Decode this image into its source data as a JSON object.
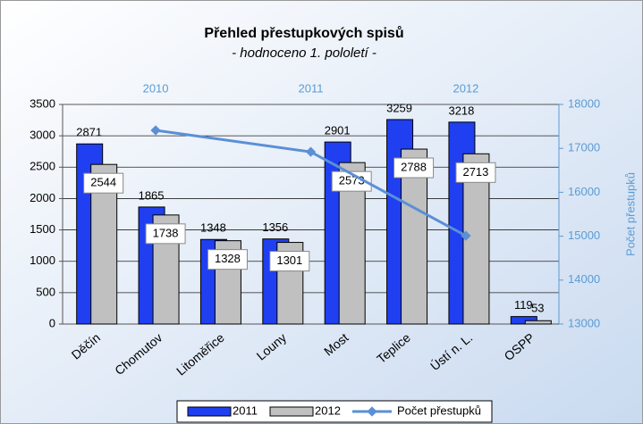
{
  "chart_data": {
    "type": "bar",
    "title": "Přehled přestupkových spisů",
    "subtitle": "- hodnoceno 1. pololetí -",
    "categories": [
      "Děčín",
      "Chomutov",
      "Litoměřice",
      "Louny",
      "Most",
      "Teplice",
      "Ústí n. L.",
      "OSPP"
    ],
    "series": [
      {
        "name": "2011",
        "color": "#1f3ff0",
        "values": [
          2871,
          1865,
          1348,
          1356,
          2901,
          3259,
          3218,
          119
        ]
      },
      {
        "name": "2012",
        "color": "#c0c0c0",
        "values": [
          2544,
          1738,
          1328,
          1301,
          2573,
          2788,
          2713,
          53
        ]
      },
      {
        "name": "Počet přestupků",
        "color": "#5b8fd6",
        "type": "line",
        "axis": "y2",
        "x": [
          "2010",
          "2011",
          "2012"
        ],
        "values": [
          17410,
          16920,
          15010
        ]
      }
    ],
    "ylim": [
      0,
      3500
    ],
    "yticks": [
      0,
      500,
      1000,
      1500,
      2000,
      2500,
      3000,
      3500
    ],
    "y2lim": [
      13000,
      18000
    ],
    "y2ticks": [
      13000,
      14000,
      15000,
      16000,
      17000,
      18000
    ],
    "y2label": "Počet přestupků",
    "grid": true,
    "legend": "bottom"
  }
}
